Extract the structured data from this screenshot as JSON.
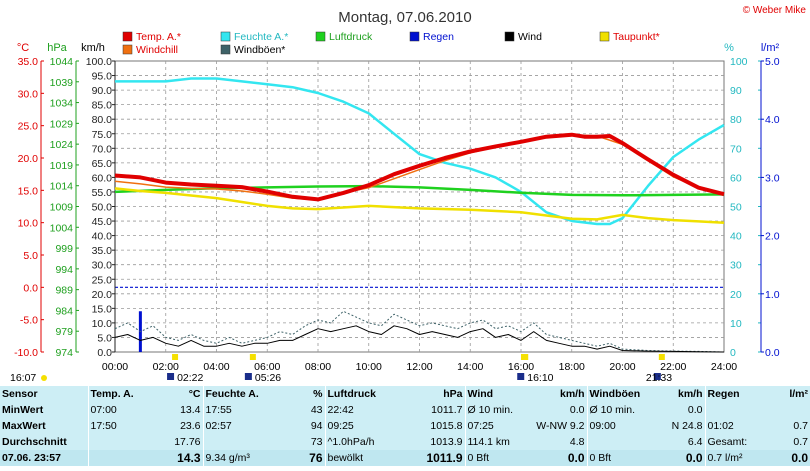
{
  "header": {
    "title": "Montag, 07.06.2010",
    "credit": "© Weber Mike"
  },
  "units": {
    "temp": "°C",
    "pressure": "hPa",
    "wind": "km/h",
    "humidity": "%",
    "rain": "l/m²"
  },
  "legend": [
    {
      "label": "Temp. A.*",
      "color": "#e00000"
    },
    {
      "label": "Feuchte A.*",
      "color": "#33e6f0"
    },
    {
      "label": "Luftdruck",
      "color": "#1fd11f"
    },
    {
      "label": "Regen",
      "color": "#0010d0"
    },
    {
      "label": "Wind",
      "color": "#000000"
    },
    {
      "label": "Taupunkt*",
      "color": "#f0e000"
    },
    {
      "label": "Windchill",
      "color": "#f07010"
    },
    {
      "label": "Windböen*",
      "color": "#3e6268"
    }
  ],
  "markers": [
    {
      "label": "16:07",
      "time": 16.117
    },
    {
      "label": "02:22",
      "time": 2.367
    },
    {
      "label": "05:26",
      "time": 5.433
    },
    {
      "label": "16:10",
      "time": 16.167
    },
    {
      "label": "21:33",
      "time": 21.55
    }
  ],
  "chart_data": {
    "type": "line",
    "x_range": [
      0,
      24
    ],
    "x_ticks": [
      "00:00",
      "02:00",
      "04:00",
      "06:00",
      "08:00",
      "10:00",
      "12:00",
      "14:00",
      "16:00",
      "18:00",
      "20:00",
      "22:00",
      "24:00"
    ],
    "axes": {
      "temp": {
        "range": [
          -10,
          35
        ],
        "ticks": [
          "35.0",
          "30.0",
          "25.0",
          "20.0",
          "15.0",
          "10.0",
          "5.0",
          "0.0",
          "-5.0",
          "-10.0"
        ]
      },
      "pressure": {
        "range": [
          974,
          1044
        ],
        "ticks": [
          "1044",
          "1039",
          "1034",
          "1029",
          "1024",
          "1019",
          "1014",
          "1009",
          "1004",
          "999",
          "994",
          "989",
          "984",
          "979",
          "974"
        ]
      },
      "wind": {
        "range": [
          0,
          100
        ],
        "ticks": [
          "100.0",
          "95.0",
          "90.0",
          "85.0",
          "80.0",
          "75.0",
          "70.0",
          "65.0",
          "60.0",
          "55.0",
          "50.0",
          "45.0",
          "40.0",
          "35.0",
          "30.0",
          "25.0",
          "20.0",
          "15.0",
          "10.0",
          "5.0",
          "0.0"
        ]
      },
      "humidity": {
        "range": [
          0,
          100
        ],
        "ticks": [
          "100",
          "90",
          "80",
          "70",
          "60",
          "50",
          "40",
          "30",
          "20",
          "10",
          "0"
        ]
      },
      "rain": {
        "range": [
          0,
          5
        ],
        "ticks": [
          "5.0",
          "4.0",
          "3.0",
          "2.0",
          "1.0",
          "0.0"
        ]
      }
    },
    "reference_line": {
      "axis": "temp",
      "value": 0
    },
    "series": [
      {
        "name": "Feuchte A.*",
        "axis": "humidity",
        "color": "#33e6f0",
        "x": [
          0,
          1,
          2,
          3,
          4,
          5,
          6,
          7,
          7.5,
          8,
          9,
          10,
          11,
          12,
          13,
          14,
          15,
          16,
          17,
          18,
          19,
          19.5,
          20,
          21,
          22,
          23,
          24
        ],
        "y": [
          93,
          93,
          93,
          94,
          94,
          93,
          92,
          91,
          90,
          89,
          86,
          82,
          75,
          68,
          65,
          63,
          60,
          55,
          48,
          45,
          44,
          44,
          46,
          57,
          67,
          73,
          78
        ]
      },
      {
        "name": "Luftdruck",
        "axis": "pressure",
        "color": "#1fd11f",
        "x": [
          0,
          2,
          4,
          6,
          8,
          10,
          12,
          14,
          16,
          18,
          20,
          22,
          24
        ],
        "y": [
          1012.5,
          1013.0,
          1013.4,
          1013.6,
          1013.8,
          1013.9,
          1013.6,
          1013.0,
          1012.3,
          1011.8,
          1011.7,
          1011.8,
          1011.9
        ]
      },
      {
        "name": "Taupunkt*",
        "axis": "temp",
        "color": "#f0e000",
        "x": [
          0,
          1,
          2,
          3,
          4,
          5,
          6,
          7,
          8,
          10,
          12,
          14,
          16,
          18,
          19,
          20,
          21,
          22,
          23,
          24
        ],
        "y": [
          15.3,
          14.9,
          14.6,
          14.2,
          13.8,
          13.2,
          12.6,
          12.2,
          12.1,
          12.6,
          12.2,
          12.0,
          11.6,
          10.6,
          10.5,
          11.2,
          10.7,
          10.4,
          10.2,
          10.0
        ]
      },
      {
        "name": "Windchill",
        "axis": "temp",
        "color": "#f07010",
        "x": [
          0,
          1,
          2,
          3,
          4,
          5,
          6,
          7,
          8,
          9,
          10,
          11,
          12,
          13,
          14,
          15,
          16,
          17,
          18,
          19,
          20,
          21,
          22,
          23,
          24
        ],
        "y": [
          16.4,
          16.0,
          15.5,
          15.3,
          15.2,
          14.9,
          14.4,
          13.8,
          13.5,
          14.6,
          15.4,
          16.8,
          18.2,
          19.6,
          20.8,
          21.7,
          22.6,
          23.3,
          23.6,
          23.4,
          22.1,
          19.6,
          17.1,
          15.4,
          14.4
        ]
      },
      {
        "name": "Temp. A.*",
        "axis": "temp",
        "color": "#e00000",
        "x": [
          0,
          1,
          2,
          3,
          4,
          5,
          6,
          7,
          8,
          9,
          10,
          11,
          12,
          13,
          14,
          15,
          16,
          17,
          18,
          18.5,
          19,
          19.5,
          20,
          21,
          22,
          23,
          24
        ],
        "y": [
          17.3,
          17.0,
          16.2,
          15.9,
          15.7,
          15.5,
          14.8,
          14.0,
          13.6,
          14.6,
          15.8,
          17.5,
          18.8,
          20.0,
          21.0,
          21.8,
          22.5,
          23.3,
          23.6,
          23.3,
          23.3,
          23.4,
          22.3,
          19.8,
          17.4,
          15.4,
          14.4
        ]
      },
      {
        "name": "Windböen*",
        "axis": "wind",
        "color": "#3e6268",
        "dashed": true,
        "x": [
          0,
          0.5,
          1,
          1.5,
          2,
          2.5,
          3,
          3.5,
          4,
          4.5,
          5,
          5.5,
          6,
          6.5,
          7,
          7.5,
          8,
          8.5,
          9,
          9.5,
          10,
          10.5,
          11,
          11.5,
          12,
          12.5,
          13,
          13.5,
          14,
          14.5,
          15,
          15.5,
          16,
          16.5,
          17,
          17.5,
          18,
          18.5,
          19,
          19.5,
          20,
          21,
          22,
          23,
          24
        ],
        "y": [
          8,
          10,
          7,
          9,
          5,
          4,
          6,
          4,
          3,
          5,
          3,
          4,
          5,
          7,
          6,
          9,
          11,
          10,
          14,
          12,
          10,
          9,
          13,
          11,
          9,
          10,
          9,
          8,
          10,
          11,
          8,
          9,
          7,
          10,
          6,
          5,
          4,
          3,
          2,
          3,
          1,
          0.5,
          0.3,
          0.2,
          0
        ]
      },
      {
        "name": "Wind",
        "axis": "wind",
        "color": "#000000",
        "x": [
          0,
          0.5,
          1,
          1.5,
          2,
          2.5,
          3,
          3.5,
          4,
          4.5,
          5,
          5.5,
          6,
          6.5,
          7,
          7.5,
          8,
          8.5,
          9,
          9.5,
          10,
          10.5,
          11,
          11.5,
          12,
          12.5,
          13,
          13.5,
          14,
          14.5,
          15,
          15.5,
          16,
          16.5,
          17,
          17.5,
          18,
          18.5,
          19,
          19.5,
          20,
          21,
          22,
          23,
          24
        ],
        "y": [
          5,
          6,
          4,
          5,
          3,
          2,
          4,
          2,
          2,
          3,
          2,
          3,
          3,
          4,
          4,
          6,
          8,
          7,
          8,
          9,
          7,
          6,
          9,
          8,
          6,
          7,
          6,
          5,
          7,
          8,
          5,
          6,
          4,
          7,
          4,
          3,
          2,
          2,
          1,
          2,
          0.5,
          0.3,
          0.2,
          0.1,
          0
        ]
      }
    ],
    "bars": [
      {
        "name": "Regen",
        "axis": "rain",
        "color": "#0010d0",
        "x": 1.0,
        "value": 0.7
      }
    ]
  },
  "summary": {
    "headers": [
      "Sensor",
      "Temp. A.",
      "°C",
      "Feuchte A.",
      "%",
      "Luftdruck",
      "hPa",
      "Wind",
      "km/h",
      "Windböen",
      "km/h",
      "Regen",
      "l/m²"
    ],
    "rows": [
      [
        "MinWert",
        "07:00",
        "13.4",
        "17:55",
        "43",
        "22:42",
        "1011.7",
        "Ø 10 min.",
        "0.0",
        "Ø 10 min.",
        "0.0",
        "",
        ""
      ],
      [
        "MaxWert",
        "17:50",
        "23.6",
        "02:57",
        "94",
        "09:25",
        "1015.8",
        "07:25",
        "W-NW 9.2",
        "09:00",
        "N 24.8",
        "01:02",
        "0.7"
      ],
      [
        "Durchschnitt",
        "",
        "17.76",
        "",
        "73",
        "^1.0hPa/h",
        "1013.9",
        "114.1 km",
        "4.8",
        "",
        "6.4",
        "Gesamt:",
        "0.7"
      ],
      [
        "07.06. 23:57",
        "",
        "14.3",
        "9.34 g/m³",
        "76",
        "bewölkt",
        "1011.9",
        "0 Bft",
        "0.0",
        "0 Bft",
        "0.0",
        "0.7 l/m²",
        "0.0"
      ]
    ]
  }
}
